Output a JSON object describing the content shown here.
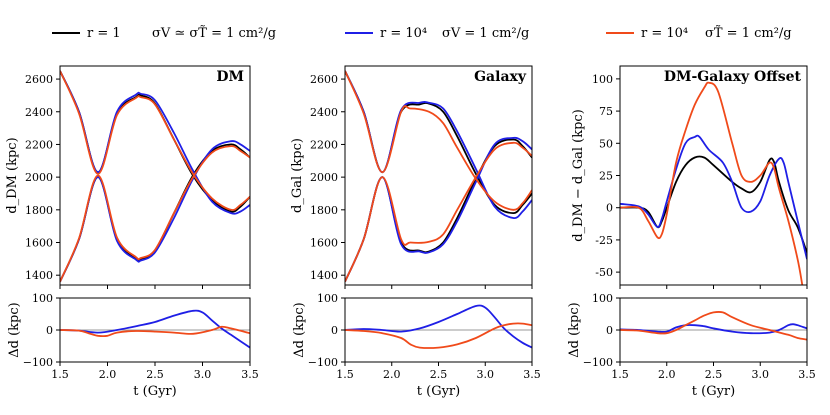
{
  "chart_data": {
    "type": "line",
    "legend": {
      "placement": "top",
      "entries": [
        {
          "r_label": "r = 1",
          "sigma_label": "σV ≃ σT̃ = 1 cm²/g",
          "color": "#000000"
        },
        {
          "r_label": "r = 10⁴",
          "sigma_label": "σV = 1 cm²/g",
          "color": "#1f1fe6"
        },
        {
          "r_label": "r = 10⁴",
          "sigma_label": "σT̃ = 1 cm²/g",
          "color": "#f04a1a"
        }
      ]
    },
    "xlabel": "t (Gyr)",
    "xlim": [
      1.5,
      3.5
    ],
    "xticks": [
      1.5,
      2.0,
      2.5,
      3.0,
      3.5
    ],
    "xtick_labels": [
      "1.5",
      "2.0",
      "2.5",
      "3.0",
      "3.5"
    ],
    "panels": [
      {
        "id": "dm",
        "title": "DM",
        "ylabel_main": "d_DM (kpc)",
        "ylim": [
          1340,
          2680
        ],
        "yticks": [
          1400,
          1600,
          1800,
          2000,
          2200,
          2400,
          2600
        ],
        "main_series": [
          {
            "name": "r=1 upper",
            "color": "#000000",
            "x": [
              1.5,
              1.7,
              1.9,
              2.1,
              2.3,
              2.35,
              2.5,
              2.7,
              2.9,
              3.1,
              3.3,
              3.4,
              3.5
            ],
            "y": [
              2650,
              2400,
              2030,
              2390,
              2490,
              2500,
              2450,
              2230,
              2010,
              1860,
              1790,
              1820,
              1880
            ]
          },
          {
            "name": "r=1 lower",
            "color": "#000000",
            "x": [
              1.5,
              1.7,
              1.9,
              2.1,
              2.3,
              2.35,
              2.5,
              2.7,
              2.9,
              3.1,
              3.3,
              3.4,
              3.5
            ],
            "y": [
              1360,
              1620,
              2000,
              1620,
              1505,
              1500,
              1550,
              1780,
              2010,
              2160,
              2200,
              2170,
              2120
            ]
          },
          {
            "name": "σV upper",
            "color": "#1f1fe6",
            "x": [
              1.5,
              1.7,
              1.9,
              2.1,
              2.3,
              2.35,
              2.5,
              2.7,
              2.9,
              3.1,
              3.3,
              3.4,
              3.5
            ],
            "y": [
              2650,
              2400,
              2030,
              2400,
              2505,
              2510,
              2470,
              2270,
              2040,
              1850,
              1780,
              1790,
              1830
            ]
          },
          {
            "name": "σV lower",
            "color": "#1f1fe6",
            "x": [
              1.5,
              1.7,
              1.9,
              2.1,
              2.3,
              2.35,
              2.5,
              2.7,
              2.9,
              3.1,
              3.3,
              3.4,
              3.5
            ],
            "y": [
              1360,
              1620,
              2000,
              1610,
              1495,
              1490,
              1540,
              1750,
              1990,
              2170,
              2220,
              2200,
              2160
            ]
          },
          {
            "name": "σT upper",
            "color": "#f04a1a",
            "x": [
              1.5,
              1.7,
              1.9,
              2.1,
              2.3,
              2.35,
              2.5,
              2.7,
              2.9,
              3.1,
              3.3,
              3.4,
              3.5
            ],
            "y": [
              2650,
              2390,
              2020,
              2380,
              2485,
              2490,
              2445,
              2230,
              2020,
              1870,
              1800,
              1830,
              1880
            ]
          },
          {
            "name": "σT lower",
            "color": "#f04a1a",
            "x": [
              1.5,
              1.7,
              1.9,
              2.1,
              2.3,
              2.35,
              2.5,
              2.7,
              2.9,
              3.1,
              3.3,
              3.4,
              3.5
            ],
            "y": [
              1360,
              1625,
              2010,
              1630,
              1510,
              1505,
              1555,
              1780,
              2000,
              2150,
              2190,
              2160,
              2120
            ]
          }
        ],
        "ylabel_sub": "Δd (kpc)",
        "sub_ylim": [
          -100,
          100
        ],
        "sub_yticks": [
          -100,
          0,
          100
        ],
        "sub_series": [
          {
            "name": "σV Δd",
            "color": "#1f1fe6",
            "x": [
              1.5,
              1.7,
              1.9,
              2.1,
              2.3,
              2.5,
              2.7,
              2.9,
              3.0,
              3.1,
              3.2,
              3.3,
              3.4,
              3.5
            ],
            "y": [
              0,
              -2,
              -8,
              0,
              12,
              25,
              45,
              60,
              55,
              30,
              5,
              -15,
              -35,
              -55
            ]
          },
          {
            "name": "σT Δd",
            "color": "#f04a1a",
            "x": [
              1.5,
              1.7,
              1.8,
              1.9,
              2.0,
              2.1,
              2.3,
              2.5,
              2.7,
              2.9,
              3.1,
              3.2,
              3.3,
              3.5
            ],
            "y": [
              0,
              -2,
              -10,
              -18,
              -18,
              -8,
              -3,
              -5,
              -8,
              -12,
              0,
              10,
              5,
              -10
            ]
          }
        ]
      },
      {
        "id": "galaxy",
        "title": "Galaxy",
        "ylabel_main": "d_Gal (kpc)",
        "ylim": [
          1340,
          2680
        ],
        "yticks": [
          1400,
          1600,
          1800,
          2000,
          2200,
          2400,
          2600
        ],
        "main_series": [
          {
            "name": "r=1 upper",
            "color": "#000000",
            "x": [
              1.5,
              1.7,
              1.9,
              2.1,
              2.3,
              2.4,
              2.55,
              2.7,
              2.9,
              3.1,
              3.3,
              3.4,
              3.5
            ],
            "y": [
              2650,
              2400,
              2030,
              2400,
              2445,
              2450,
              2400,
              2250,
              2020,
              1830,
              1780,
              1830,
              1900
            ]
          },
          {
            "name": "r=1 lower",
            "color": "#000000",
            "x": [
              1.5,
              1.7,
              1.9,
              2.1,
              2.3,
              2.4,
              2.55,
              2.7,
              2.9,
              3.1,
              3.3,
              3.4,
              3.5
            ],
            "y": [
              1360,
              1620,
              2000,
              1600,
              1550,
              1545,
              1600,
              1750,
              1990,
              2190,
              2230,
              2190,
              2120
            ]
          },
          {
            "name": "σV upper",
            "color": "#1f1fe6",
            "x": [
              1.5,
              1.7,
              1.9,
              2.1,
              2.3,
              2.4,
              2.55,
              2.7,
              2.9,
              3.1,
              3.3,
              3.4,
              3.5
            ],
            "y": [
              2650,
              2400,
              2030,
              2410,
              2455,
              2455,
              2420,
              2280,
              2050,
              1820,
              1750,
              1790,
              1860
            ]
          },
          {
            "name": "σV lower",
            "color": "#1f1fe6",
            "x": [
              1.5,
              1.7,
              1.9,
              2.1,
              2.3,
              2.4,
              2.55,
              2.7,
              2.9,
              3.1,
              3.3,
              3.4,
              3.5
            ],
            "y": [
              1360,
              1620,
              2000,
              1590,
              1545,
              1540,
              1590,
              1730,
              1970,
              2200,
              2240,
              2220,
              2170
            ]
          },
          {
            "name": "σT upper",
            "color": "#f04a1a",
            "x": [
              1.5,
              1.7,
              1.9,
              2.1,
              2.2,
              2.4,
              2.55,
              2.7,
              2.9,
              3.1,
              3.3,
              3.4,
              3.5
            ],
            "y": [
              2650,
              2390,
              2030,
              2400,
              2420,
              2400,
              2330,
              2180,
              1990,
              1850,
              1800,
              1840,
              1920
            ]
          },
          {
            "name": "σT lower",
            "color": "#f04a1a",
            "x": [
              1.5,
              1.7,
              1.9,
              2.1,
              2.2,
              2.4,
              2.55,
              2.7,
              2.9,
              3.1,
              3.3,
              3.4,
              3.5
            ],
            "y": [
              1360,
              1620,
              2000,
              1620,
              1600,
              1605,
              1650,
              1800,
              2000,
              2170,
              2210,
              2180,
              2130
            ]
          }
        ],
        "ylabel_sub": "Δd (kpc)",
        "sub_ylim": [
          -100,
          100
        ],
        "sub_yticks": [
          -100,
          0,
          100
        ],
        "sub_series": [
          {
            "name": "σV Δd",
            "color": "#1f1fe6",
            "x": [
              1.5,
              1.7,
              1.9,
              2.1,
              2.3,
              2.5,
              2.7,
              2.9,
              3.0,
              3.1,
              3.2,
              3.3,
              3.4,
              3.5
            ],
            "y": [
              0,
              3,
              0,
              -5,
              5,
              25,
              50,
              75,
              70,
              40,
              5,
              -20,
              -40,
              -55
            ]
          },
          {
            "name": "σT Δd",
            "color": "#f04a1a",
            "x": [
              1.5,
              1.7,
              1.9,
              2.1,
              2.2,
              2.3,
              2.5,
              2.7,
              2.9,
              3.1,
              3.2,
              3.3,
              3.4,
              3.5
            ],
            "y": [
              0,
              -3,
              -10,
              -25,
              -45,
              -55,
              -55,
              -45,
              -25,
              5,
              15,
              20,
              20,
              15
            ]
          }
        ]
      },
      {
        "id": "offset",
        "title": "DM-Galaxy Offset",
        "ylabel_main": "d_DM − d_Gal (kpc)",
        "ylim": [
          -60,
          110
        ],
        "yticks": [
          -50,
          -25,
          0,
          25,
          50,
          75,
          100
        ],
        "main_series": [
          {
            "name": "r=1",
            "color": "#000000",
            "x": [
              1.5,
              1.7,
              1.8,
              1.9,
              1.95,
              2.0,
              2.1,
              2.2,
              2.3,
              2.4,
              2.5,
              2.7,
              2.8,
              2.9,
              3.0,
              3.1,
              3.15,
              3.2,
              3.3,
              3.4,
              3.5
            ],
            "y": [
              0,
              0,
              -3,
              -15,
              -10,
              0,
              20,
              33,
              39,
              39,
              33,
              20,
              15,
              12,
              20,
              37,
              35,
              20,
              -2,
              -15,
              -35
            ]
          },
          {
            "name": "σV",
            "color": "#1f1fe6",
            "x": [
              1.5,
              1.7,
              1.8,
              1.9,
              1.95,
              2.0,
              2.1,
              2.2,
              2.3,
              2.35,
              2.45,
              2.6,
              2.7,
              2.8,
              2.9,
              3.0,
              3.1,
              3.2,
              3.25,
              3.3,
              3.4,
              3.5
            ],
            "y": [
              3,
              1,
              -5,
              -15,
              -8,
              5,
              30,
              50,
              55,
              55,
              45,
              35,
              20,
              0,
              -3,
              5,
              25,
              38,
              35,
              20,
              -10,
              -40
            ]
          },
          {
            "name": "σT",
            "color": "#f04a1a",
            "x": [
              1.5,
              1.7,
              1.8,
              1.9,
              1.95,
              2.0,
              2.1,
              2.2,
              2.3,
              2.4,
              2.45,
              2.55,
              2.7,
              2.8,
              2.9,
              3.0,
              3.1,
              3.15,
              3.2,
              3.3,
              3.4,
              3.45
            ],
            "y": [
              0,
              0,
              -10,
              -23,
              -20,
              -5,
              35,
              60,
              80,
              93,
              97,
              90,
              50,
              25,
              20,
              25,
              35,
              30,
              15,
              -10,
              -40,
              -60
            ]
          }
        ],
        "ylabel_sub": "Δd (kpc)",
        "sub_ylim": [
          -100,
          100
        ],
        "sub_yticks": [
          -100,
          0,
          100
        ],
        "sub_series": [
          {
            "name": "σV Δd",
            "color": "#1f1fe6",
            "x": [
              1.5,
              1.7,
              1.9,
              2.0,
              2.1,
              2.2,
              2.3,
              2.4,
              2.5,
              2.7,
              2.9,
              3.1,
              3.2,
              3.3,
              3.35,
              3.4,
              3.5
            ],
            "y": [
              2,
              0,
              -5,
              -5,
              8,
              15,
              15,
              12,
              5,
              -5,
              -10,
              -8,
              0,
              15,
              18,
              15,
              5
            ]
          },
          {
            "name": "σT Δd",
            "color": "#f04a1a",
            "x": [
              1.5,
              1.7,
              1.9,
              2.0,
              2.1,
              2.2,
              2.3,
              2.4,
              2.5,
              2.6,
              2.7,
              2.9,
              3.1,
              3.3,
              3.4,
              3.5
            ],
            "y": [
              0,
              -2,
              -10,
              -10,
              0,
              15,
              30,
              45,
              55,
              55,
              40,
              15,
              0,
              -15,
              -25,
              -30
            ]
          }
        ]
      }
    ]
  }
}
